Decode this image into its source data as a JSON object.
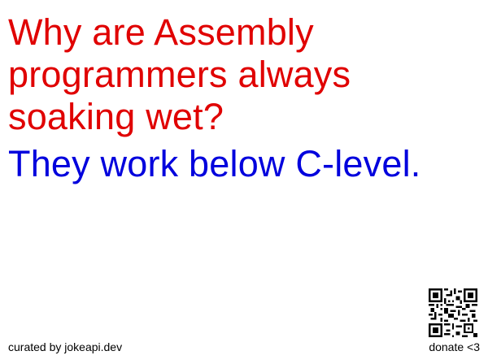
{
  "joke": {
    "setup": "Why are Assembly programmers always soaking wet?",
    "delivery": "They work below C-level.",
    "setup_color": "#e00000",
    "delivery_color": "#0000dd"
  },
  "footer": {
    "credit": "curated by jokeapi.dev",
    "donate": "donate <3"
  },
  "icons": {
    "qr": "qr-code-icon"
  }
}
